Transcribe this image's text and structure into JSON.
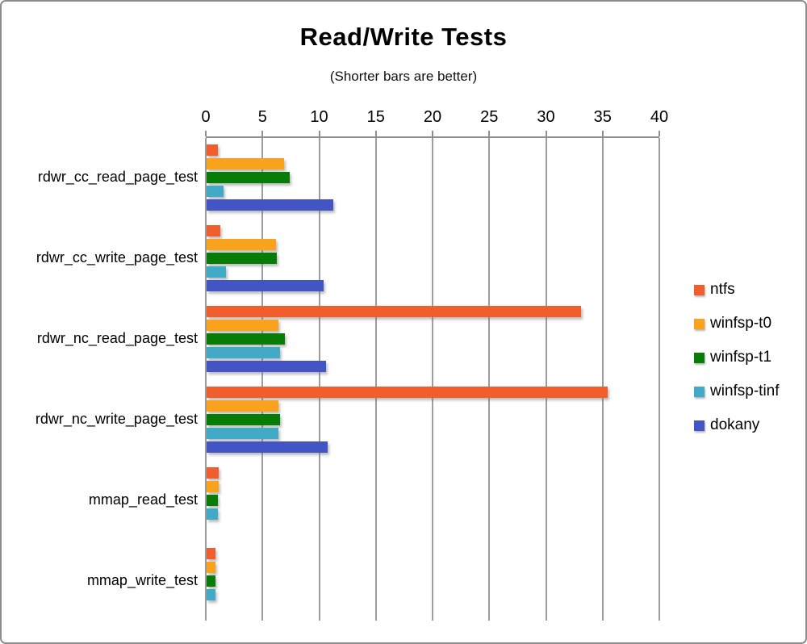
{
  "chart_data": {
    "type": "bar",
    "orientation": "horizontal",
    "title": "Read/Write Tests",
    "subtitle": "(Shorter bars are better)",
    "categories": [
      "rdwr_cc_read_page_test",
      "rdwr_cc_write_page_test",
      "rdwr_nc_read_page_test",
      "rdwr_nc_write_page_test",
      "mmap_read_test",
      "mmap_write_test"
    ],
    "series": [
      {
        "name": "ntfs",
        "color": "#F15D2C",
        "values": [
          1.0,
          1.2,
          33.0,
          35.4,
          1.1,
          0.8
        ]
      },
      {
        "name": "winfsp-t0",
        "color": "#F9A21D",
        "values": [
          6.8,
          6.1,
          6.3,
          6.3,
          1.1,
          0.8
        ]
      },
      {
        "name": "winfsp-t1",
        "color": "#077D07",
        "values": [
          7.3,
          6.2,
          6.9,
          6.5,
          1.0,
          0.8
        ]
      },
      {
        "name": "winfsp-tinf",
        "color": "#42A9C6",
        "values": [
          1.5,
          1.7,
          6.5,
          6.3,
          1.0,
          0.8
        ]
      },
      {
        "name": "dokany",
        "color": "#4355C4",
        "values": [
          11.2,
          10.3,
          10.5,
          10.7,
          0,
          0
        ]
      }
    ],
    "x_axis": {
      "min": 0,
      "max": 40,
      "tick_step": 5,
      "tick_labels": [
        "0",
        "5",
        "10",
        "15",
        "20",
        "25",
        "30",
        "35",
        "40"
      ]
    },
    "legend": {
      "position": "right",
      "entries": [
        "ntfs",
        "winfsp-t0",
        "winfsp-t1",
        "winfsp-tinf",
        "dokany"
      ]
    },
    "grid": "vertical-only",
    "colors": {
      "gridline": "#9d9d9d",
      "axis_border": "#8f8f8f",
      "frame_border": "#8c8c8c",
      "background": "#ffffff"
    }
  }
}
